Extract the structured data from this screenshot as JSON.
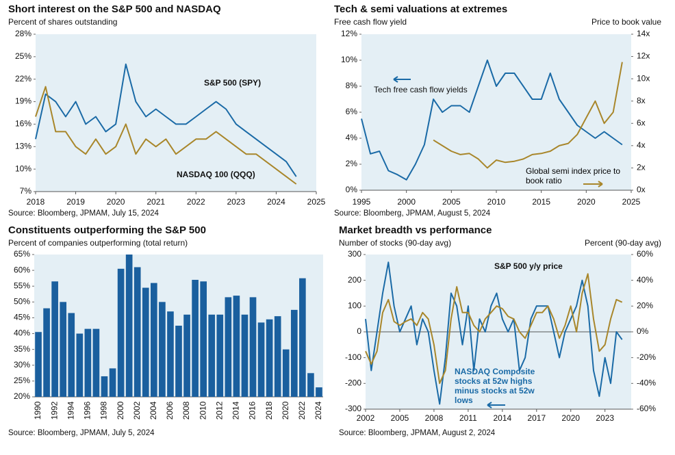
{
  "chart_data": [
    {
      "type": "line",
      "title": "Short interest on the S&P 500 and NASDAQ",
      "subtitle": "Percent of shares outstanding",
      "source": "Source: Bloomberg, JPMAM, July 15, 2024",
      "x": [
        2018,
        2018.25,
        2018.5,
        2018.75,
        2019,
        2019.25,
        2019.5,
        2019.75,
        2020,
        2020.25,
        2020.5,
        2020.75,
        2021,
        2021.25,
        2021.5,
        2021.75,
        2022,
        2022.25,
        2022.5,
        2022.75,
        2023,
        2023.25,
        2023.5,
        2023.75,
        2024,
        2024.25,
        2024.5
      ],
      "series": [
        {
          "name": "S&P 500 (SPY)",
          "color": "#1a6aa6",
          "values": [
            14,
            20,
            19,
            17,
            19,
            16,
            17,
            15,
            16,
            24,
            19,
            17,
            18,
            17,
            16,
            16,
            17,
            18,
            19,
            18,
            16,
            15,
            14,
            13,
            12,
            11,
            9
          ]
        },
        {
          "name": "NASDAQ 100 (QQQ)",
          "color": "#a8862a",
          "values": [
            17,
            21,
            15,
            15,
            13,
            12,
            14,
            12,
            13,
            16,
            12,
            14,
            13,
            14,
            12,
            13,
            14,
            14,
            15,
            14,
            13,
            12,
            12,
            11,
            10,
            9,
            8
          ]
        }
      ],
      "xlim": [
        2018,
        2025
      ],
      "xticks": [
        2018,
        2019,
        2020,
        2021,
        2022,
        2023,
        2024,
        2025
      ],
      "ylim": [
        7,
        28
      ],
      "yticks": [
        {
          "value": 7,
          "label": "7%"
        },
        {
          "value": 10,
          "label": "10%"
        },
        {
          "value": 13,
          "label": "13%"
        },
        {
          "value": 16,
          "label": "16%"
        },
        {
          "value": 19,
          "label": "19%"
        },
        {
          "value": 22,
          "label": "22%"
        },
        {
          "value": 25,
          "label": "25%"
        },
        {
          "value": 28,
          "label": "28%"
        }
      ]
    },
    {
      "type": "line",
      "title": "Tech & semi valuations at extremes",
      "y_label": "Free cash flow yield",
      "y2_label": "Price to book value",
      "source": "Source: Bloomberg, JPMAM, August 5, 2024",
      "x": [
        1995,
        1996,
        1997,
        1998,
        1999,
        2000,
        2001,
        2002,
        2003,
        2004,
        2005,
        2006,
        2007,
        2008,
        2009,
        2010,
        2011,
        2012,
        2013,
        2014,
        2015,
        2016,
        2017,
        2018,
        2019,
        2020,
        2021,
        2022,
        2023,
        2024
      ],
      "series": [
        {
          "name": "Tech free cash flow yields",
          "color": "#1a6aa6",
          "values": [
            5.5,
            2.8,
            3,
            1.5,
            1.2,
            0.8,
            2,
            3.5,
            7,
            6,
            6.5,
            6.5,
            6,
            8,
            10,
            8,
            9,
            9,
            8,
            7,
            7,
            9,
            7,
            6,
            5,
            4.5,
            4,
            4.5,
            4,
            3.5
          ]
        },
        {
          "name": "Global semi index price to book ratio",
          "color": "#a8862a",
          "axis": "y2",
          "values": [
            null,
            null,
            null,
            null,
            null,
            null,
            null,
            null,
            4.5,
            4,
            3.5,
            3.2,
            3.3,
            2.8,
            2,
            2.7,
            2.5,
            2.6,
            2.8,
            3.2,
            3.3,
            3.5,
            4,
            4.2,
            5,
            6.5,
            8,
            6,
            7,
            11.5
          ]
        }
      ],
      "xlim": [
        1995,
        2025
      ],
      "xticks": [
        1995,
        2000,
        2005,
        2010,
        2015,
        2020,
        2025
      ],
      "ylim": [
        0,
        12
      ],
      "yticks": [
        {
          "value": 0,
          "label": "0%"
        },
        {
          "value": 2,
          "label": "2%"
        },
        {
          "value": 4,
          "label": "4%"
        },
        {
          "value": 6,
          "label": "6%"
        },
        {
          "value": 8,
          "label": "8%"
        },
        {
          "value": 10,
          "label": "10%"
        },
        {
          "value": 12,
          "label": "12%"
        }
      ],
      "y2lim": [
        0,
        14
      ],
      "y2ticks": [
        {
          "value": 0,
          "label": "0x"
        },
        {
          "value": 2,
          "label": "2x"
        },
        {
          "value": 4,
          "label": "4x"
        },
        {
          "value": 6,
          "label": "6x"
        },
        {
          "value": 8,
          "label": "8x"
        },
        {
          "value": 10,
          "label": "10x"
        },
        {
          "value": 12,
          "label": "12x"
        },
        {
          "value": 14,
          "label": "14x"
        }
      ]
    },
    {
      "type": "bar",
      "title": "Constituents outperforming the S&P 500",
      "subtitle": "Percent of companies outperforming (total return)",
      "source": "Source: Bloomberg, JPMAM, July 5, 2024",
      "color": "#1a5f9e",
      "categories": [
        "1990",
        null,
        "1992",
        null,
        "1994",
        null,
        "1996",
        null,
        "1998",
        null,
        "2000",
        null,
        "2002",
        null,
        "2004",
        null,
        "2006",
        null,
        "2008",
        null,
        "2010",
        null,
        "2012",
        null,
        "2014",
        null,
        "2016",
        null,
        "2018",
        null,
        "2020",
        null,
        "2022",
        null,
        "2024"
      ],
      "values": [
        40.5,
        48,
        56.5,
        50,
        46.5,
        40,
        41.5,
        41.5,
        26.5,
        29,
        60.5,
        65,
        61,
        54.5,
        56,
        50,
        47,
        42.5,
        46,
        57,
        56.5,
        46,
        46,
        51.5,
        52,
        46,
        51.5,
        43.5,
        44.5,
        45.5,
        35,
        47.5,
        57.5,
        27.5,
        23
      ],
      "ylim": [
        20,
        65
      ],
      "yticks": [
        {
          "value": 20,
          "label": "20%"
        },
        {
          "value": 25,
          "label": "25%"
        },
        {
          "value": 30,
          "label": "30%"
        },
        {
          "value": 35,
          "label": "35%"
        },
        {
          "value": 40,
          "label": "40%"
        },
        {
          "value": 45,
          "label": "45%"
        },
        {
          "value": 50,
          "label": "50%"
        },
        {
          "value": 55,
          "label": "55%"
        },
        {
          "value": 60,
          "label": "60%"
        },
        {
          "value": 65,
          "label": "65%"
        }
      ]
    },
    {
      "type": "line",
      "title": "Market breadth vs performance",
      "y_label": "Number of stocks (90-day avg)",
      "y2_label": "Percent (90-day avg)",
      "source": "Source: Bloomberg, JPMAM, August 2, 2024",
      "x": [
        2002,
        2002.5,
        2003,
        2003.5,
        2004,
        2004.5,
        2005,
        2005.5,
        2006,
        2006.5,
        2007,
        2007.5,
        2008,
        2008.5,
        2009,
        2009.5,
        2010,
        2010.5,
        2011,
        2011.5,
        2012,
        2012.5,
        2013,
        2013.5,
        2014,
        2014.5,
        2015,
        2015.5,
        2016,
        2016.5,
        2017,
        2017.5,
        2018,
        2018.5,
        2019,
        2019.5,
        2020,
        2020.5,
        2021,
        2021.5,
        2022,
        2022.5,
        2023,
        2023.5,
        2024,
        2024.5
      ],
      "series": [
        {
          "name": "NASDAQ Composite stocks at 52w highs minus stocks at 52w lows",
          "color": "#1a6aa6",
          "values": [
            50,
            -150,
            0,
            150,
            270,
            100,
            0,
            50,
            100,
            -50,
            50,
            0,
            -150,
            -280,
            -100,
            150,
            100,
            -50,
            100,
            -150,
            50,
            0,
            100,
            150,
            50,
            0,
            50,
            -150,
            -100,
            50,
            100,
            100,
            100,
            0,
            -100,
            0,
            50,
            100,
            200,
            100,
            -150,
            -250,
            -100,
            -200,
            0,
            -30
          ]
        },
        {
          "name": "S&P 500 y/y price",
          "color": "#a8862a",
          "axis": "y2",
          "values": [
            -15,
            -25,
            -15,
            15,
            25,
            8,
            5,
            8,
            10,
            5,
            15,
            10,
            -10,
            -40,
            -30,
            10,
            35,
            15,
            15,
            5,
            0,
            10,
            15,
            20,
            18,
            12,
            10,
            0,
            -5,
            5,
            15,
            15,
            20,
            10,
            -5,
            5,
            20,
            0,
            30,
            45,
            10,
            -15,
            -10,
            10,
            25,
            23
          ]
        }
      ],
      "xlim": [
        2002,
        2025.3
      ],
      "xticks": [
        2002,
        2005,
        2008,
        2011,
        2014,
        2017,
        2020,
        2023
      ],
      "ylim": [
        -300,
        300
      ],
      "yticks": [
        -300,
        -200,
        -100,
        0,
        100,
        200,
        300
      ],
      "y2lim": [
        -60,
        60
      ],
      "y2ticks": [
        {
          "value": -60,
          "label": "-60%"
        },
        {
          "value": -40,
          "label": "-40%"
        },
        {
          "value": -20,
          "label": "-20%"
        },
        {
          "value": 0,
          "label": "0%"
        },
        {
          "value": 20,
          "label": "20%"
        },
        {
          "value": 40,
          "label": "40%"
        },
        {
          "value": 60,
          "label": "60%"
        }
      ]
    }
  ]
}
